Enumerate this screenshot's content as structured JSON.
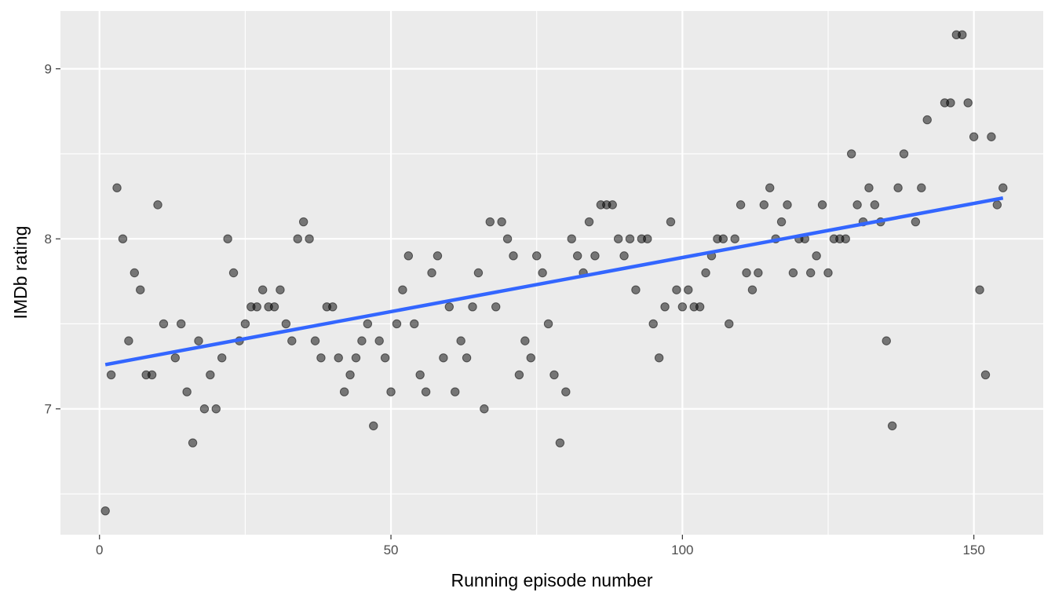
{
  "chart_data": {
    "type": "scatter",
    "xlabel": "Running episode number",
    "ylabel": "IMDb rating",
    "xlim": [
      -6.7,
      161.9
    ],
    "ylim": [
      6.26,
      9.34
    ],
    "xticks": [
      0,
      50,
      100,
      150
    ],
    "xtick_labels": [
      "0",
      "50",
      "100",
      "150"
    ],
    "yticks": [
      7,
      8,
      9
    ],
    "ytick_labels": [
      "7",
      "8",
      "9"
    ],
    "grid": true,
    "background": "#ebebeb",
    "point_color": "#000000",
    "point_alpha": 0.5,
    "points": [
      [
        1,
        6.4
      ],
      [
        2,
        7.2
      ],
      [
        3,
        8.3
      ],
      [
        4,
        8.0
      ],
      [
        5,
        7.4
      ],
      [
        6,
        7.8
      ],
      [
        7,
        7.7
      ],
      [
        8,
        7.2
      ],
      [
        9,
        7.2
      ],
      [
        10,
        8.2
      ],
      [
        11,
        7.5
      ],
      [
        13,
        7.3
      ],
      [
        14,
        7.5
      ],
      [
        15,
        7.1
      ],
      [
        16,
        6.8
      ],
      [
        17,
        7.4
      ],
      [
        18,
        7.0
      ],
      [
        19,
        7.2
      ],
      [
        20,
        7.0
      ],
      [
        21,
        7.3
      ],
      [
        22,
        8.0
      ],
      [
        23,
        7.8
      ],
      [
        24,
        7.4
      ],
      [
        25,
        7.5
      ],
      [
        26,
        7.6
      ],
      [
        27,
        7.6
      ],
      [
        28,
        7.7
      ],
      [
        29,
        7.6
      ],
      [
        30,
        7.6
      ],
      [
        31,
        7.7
      ],
      [
        32,
        7.5
      ],
      [
        33,
        7.4
      ],
      [
        34,
        8.0
      ],
      [
        35,
        8.1
      ],
      [
        36,
        8.0
      ],
      [
        37,
        7.4
      ],
      [
        38,
        7.3
      ],
      [
        39,
        7.6
      ],
      [
        40,
        7.6
      ],
      [
        41,
        7.3
      ],
      [
        42,
        7.1
      ],
      [
        43,
        7.2
      ],
      [
        44,
        7.3
      ],
      [
        45,
        7.4
      ],
      [
        46,
        7.5
      ],
      [
        47,
        6.9
      ],
      [
        48,
        7.4
      ],
      [
        49,
        7.3
      ],
      [
        50,
        7.1
      ],
      [
        51,
        7.5
      ],
      [
        52,
        7.7
      ],
      [
        53,
        7.9
      ],
      [
        54,
        7.5
      ],
      [
        55,
        7.2
      ],
      [
        56,
        7.1
      ],
      [
        57,
        7.8
      ],
      [
        58,
        7.9
      ],
      [
        59,
        7.3
      ],
      [
        60,
        7.6
      ],
      [
        61,
        7.1
      ],
      [
        62,
        7.4
      ],
      [
        63,
        7.3
      ],
      [
        64,
        7.6
      ],
      [
        65,
        7.8
      ],
      [
        66,
        7.0
      ],
      [
        67,
        8.1
      ],
      [
        68,
        7.6
      ],
      [
        69,
        8.1
      ],
      [
        70,
        8.0
      ],
      [
        71,
        7.9
      ],
      [
        72,
        7.2
      ],
      [
        73,
        7.4
      ],
      [
        74,
        7.3
      ],
      [
        75,
        7.9
      ],
      [
        76,
        7.8
      ],
      [
        77,
        7.5
      ],
      [
        78,
        7.2
      ],
      [
        79,
        6.8
      ],
      [
        80,
        7.1
      ],
      [
        81,
        8.0
      ],
      [
        82,
        7.9
      ],
      [
        83,
        7.8
      ],
      [
        84,
        8.1
      ],
      [
        85,
        7.9
      ],
      [
        86,
        8.2
      ],
      [
        87,
        8.2
      ],
      [
        88,
        8.2
      ],
      [
        89,
        8.0
      ],
      [
        90,
        7.9
      ],
      [
        91,
        8.0
      ],
      [
        92,
        7.7
      ],
      [
        93,
        8.0
      ],
      [
        94,
        8.0
      ],
      [
        95,
        7.5
      ],
      [
        96,
        7.3
      ],
      [
        97,
        7.6
      ],
      [
        98,
        8.1
      ],
      [
        99,
        7.7
      ],
      [
        100,
        7.6
      ],
      [
        101,
        7.7
      ],
      [
        102,
        7.6
      ],
      [
        103,
        7.6
      ],
      [
        104,
        7.8
      ],
      [
        105,
        7.9
      ],
      [
        106,
        8.0
      ],
      [
        107,
        8.0
      ],
      [
        108,
        7.5
      ],
      [
        109,
        8.0
      ],
      [
        110,
        8.2
      ],
      [
        111,
        7.8
      ],
      [
        112,
        7.7
      ],
      [
        113,
        7.8
      ],
      [
        114,
        8.2
      ],
      [
        115,
        8.3
      ],
      [
        116,
        8.0
      ],
      [
        117,
        8.1
      ],
      [
        118,
        8.2
      ],
      [
        119,
        7.8
      ],
      [
        120,
        8.0
      ],
      [
        121,
        8.0
      ],
      [
        122,
        7.8
      ],
      [
        123,
        7.9
      ],
      [
        124,
        8.2
      ],
      [
        125,
        7.8
      ],
      [
        126,
        8.0
      ],
      [
        127,
        8.0
      ],
      [
        128,
        8.0
      ],
      [
        129,
        8.5
      ],
      [
        130,
        8.2
      ],
      [
        131,
        8.1
      ],
      [
        132,
        8.3
      ],
      [
        133,
        8.2
      ],
      [
        134,
        8.1
      ],
      [
        135,
        7.4
      ],
      [
        136,
        6.9
      ],
      [
        137,
        8.3
      ],
      [
        138,
        8.5
      ],
      [
        140,
        8.1
      ],
      [
        141,
        8.3
      ],
      [
        142,
        8.7
      ],
      [
        145,
        8.8
      ],
      [
        146,
        8.8
      ],
      [
        147,
        9.2
      ],
      [
        148,
        9.2
      ],
      [
        149,
        8.8
      ],
      [
        150,
        8.6
      ],
      [
        151,
        7.7
      ],
      [
        152,
        7.2
      ],
      [
        153,
        8.6
      ],
      [
        154,
        8.2
      ],
      [
        155,
        8.3
      ]
    ],
    "trend_line": {
      "method": "linear",
      "color": "#3366ff",
      "x": [
        1,
        155
      ],
      "y": [
        7.26,
        8.24
      ]
    }
  }
}
